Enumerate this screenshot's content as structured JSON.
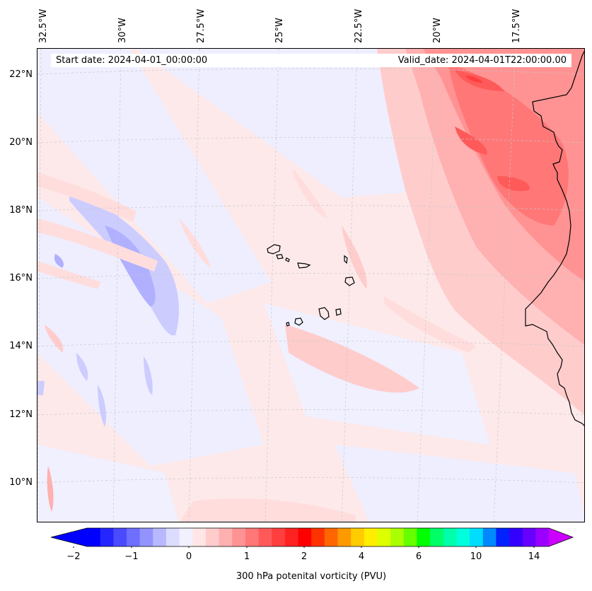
{
  "header": {
    "start_date": "Start date: 2024-04-01_00:00:00",
    "valid_date": "Valid_date: 2024-04-01T22:00:00.00"
  },
  "map": {
    "lon_labels": [
      "32.5°W",
      "30°W",
      "27.5°W",
      "25°W",
      "22.5°W",
      "20°W",
      "17.5°W"
    ],
    "lat_labels": [
      "22°N",
      "20°N",
      "18°N",
      "16°N",
      "14°N",
      "12°N",
      "10°N"
    ],
    "features": [
      "Cape Verde islands",
      "West African coastline"
    ]
  },
  "colorbar": {
    "label": "300 hPa potenital vorticity (PVU)",
    "tick_labels": [
      "−2",
      "−1",
      "0",
      "1",
      "2",
      "4",
      "6",
      "10",
      "14"
    ],
    "colors": [
      "#0000ff",
      "#2525ff",
      "#4a4aff",
      "#6e6eff",
      "#9393ff",
      "#b8b8ff",
      "#dcdcff",
      "#f0f0ff",
      "#ffe5e5",
      "#ffcccc",
      "#ffb0b0",
      "#ff9393",
      "#ff7777",
      "#ff5a5a",
      "#ff3e3e",
      "#ff2222",
      "#ff0000",
      "#ff3300",
      "#ff6600",
      "#ff9900",
      "#ffcc00",
      "#ffee00",
      "#ddff00",
      "#aaff00",
      "#66ff00",
      "#00ff00",
      "#00ff66",
      "#00ffaa",
      "#00ffdd",
      "#00ddff",
      "#0088ff",
      "#0022ff",
      "#3300ff",
      "#6600ff",
      "#9900ff"
    ],
    "under_color": "#0000ff",
    "over_color": "#cc00ff"
  }
}
